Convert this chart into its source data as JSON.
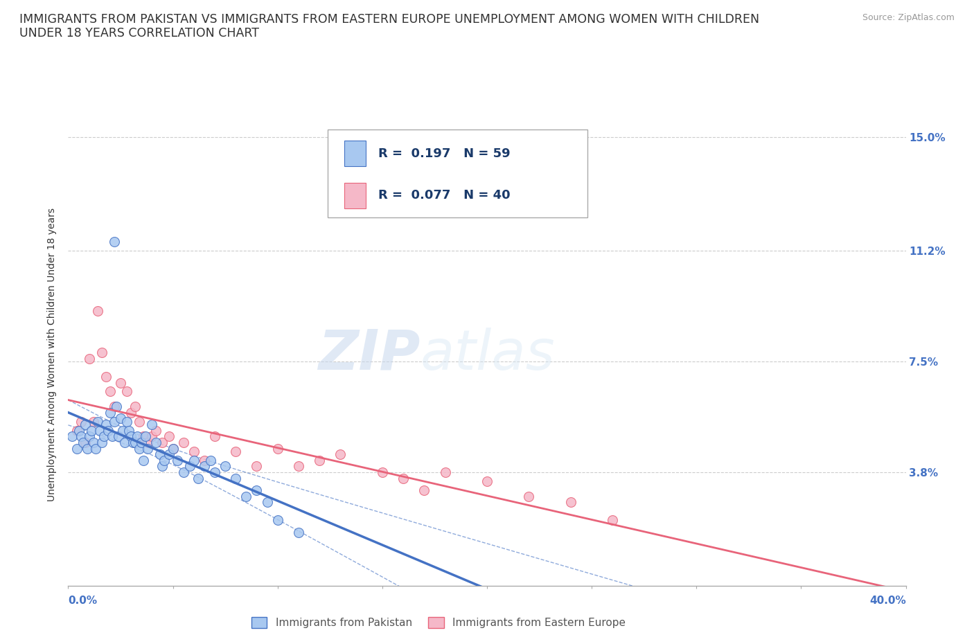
{
  "title": "IMMIGRANTS FROM PAKISTAN VS IMMIGRANTS FROM EASTERN EUROPE UNEMPLOYMENT AMONG WOMEN WITH CHILDREN\nUNDER 18 YEARS CORRELATION CHART",
  "source_text": "Source: ZipAtlas.com",
  "ylabel": "Unemployment Among Women with Children Under 18 years",
  "xlim": [
    0.0,
    0.4
  ],
  "ylim": [
    0.0,
    0.155
  ],
  "xticks": [
    0.0,
    0.05,
    0.1,
    0.15,
    0.2,
    0.25,
    0.3,
    0.35,
    0.4
  ],
  "ytick_positions": [
    0.038,
    0.075,
    0.112,
    0.15
  ],
  "ytick_labels": [
    "3.8%",
    "7.5%",
    "11.2%",
    "15.0%"
  ],
  "watermark_zip": "ZIP",
  "watermark_atlas": "atlas",
  "legend_r1": "0.197",
  "legend_n1": "59",
  "legend_r2": "0.077",
  "legend_n2": "40",
  "legend_label1": "Immigrants from Pakistan",
  "legend_label2": "Immigrants from Eastern Europe",
  "color_pakistan": "#A8C8F0",
  "color_eastern": "#F5B8C8",
  "color_line_pakistan": "#4472C4",
  "color_line_eastern": "#E8647A",
  "color_tick": "#4472C4",
  "background_color": "#FFFFFF",
  "grid_color": "#CCCCCC",
  "pakistan_x": [
    0.002,
    0.004,
    0.005,
    0.006,
    0.007,
    0.008,
    0.009,
    0.01,
    0.011,
    0.012,
    0.013,
    0.014,
    0.015,
    0.016,
    0.017,
    0.018,
    0.019,
    0.02,
    0.021,
    0.022,
    0.022,
    0.023,
    0.024,
    0.025,
    0.026,
    0.027,
    0.028,
    0.029,
    0.03,
    0.031,
    0.032,
    0.033,
    0.034,
    0.035,
    0.036,
    0.037,
    0.038,
    0.04,
    0.042,
    0.044,
    0.045,
    0.046,
    0.048,
    0.05,
    0.052,
    0.055,
    0.058,
    0.06,
    0.062,
    0.065,
    0.068,
    0.07,
    0.075,
    0.08,
    0.085,
    0.09,
    0.095,
    0.1,
    0.11
  ],
  "pakistan_y": [
    0.05,
    0.046,
    0.052,
    0.05,
    0.048,
    0.054,
    0.046,
    0.05,
    0.052,
    0.048,
    0.046,
    0.055,
    0.052,
    0.048,
    0.05,
    0.054,
    0.052,
    0.058,
    0.05,
    0.055,
    0.115,
    0.06,
    0.05,
    0.056,
    0.052,
    0.048,
    0.055,
    0.052,
    0.05,
    0.048,
    0.048,
    0.05,
    0.046,
    0.048,
    0.042,
    0.05,
    0.046,
    0.054,
    0.048,
    0.044,
    0.04,
    0.042,
    0.044,
    0.046,
    0.042,
    0.038,
    0.04,
    0.042,
    0.036,
    0.04,
    0.042,
    0.038,
    0.04,
    0.036,
    0.03,
    0.032,
    0.028,
    0.022,
    0.018
  ],
  "eastern_x": [
    0.004,
    0.006,
    0.008,
    0.01,
    0.012,
    0.014,
    0.016,
    0.018,
    0.02,
    0.022,
    0.025,
    0.028,
    0.03,
    0.032,
    0.034,
    0.036,
    0.038,
    0.04,
    0.042,
    0.045,
    0.048,
    0.05,
    0.055,
    0.06,
    0.065,
    0.07,
    0.08,
    0.09,
    0.1,
    0.11,
    0.12,
    0.13,
    0.15,
    0.16,
    0.17,
    0.18,
    0.2,
    0.22,
    0.24,
    0.26
  ],
  "eastern_y": [
    0.052,
    0.055,
    0.048,
    0.076,
    0.055,
    0.092,
    0.078,
    0.07,
    0.065,
    0.06,
    0.068,
    0.065,
    0.058,
    0.06,
    0.055,
    0.05,
    0.048,
    0.05,
    0.052,
    0.048,
    0.05,
    0.046,
    0.048,
    0.045,
    0.042,
    0.05,
    0.045,
    0.04,
    0.046,
    0.04,
    0.042,
    0.044,
    0.038,
    0.036,
    0.032,
    0.038,
    0.035,
    0.03,
    0.028,
    0.022
  ]
}
